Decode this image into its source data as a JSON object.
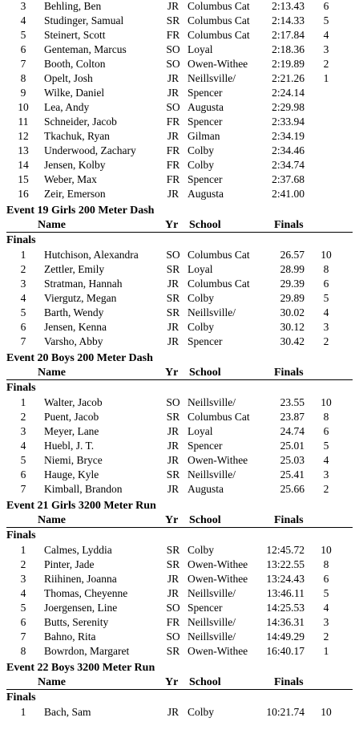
{
  "top_rows": [
    {
      "place": "3",
      "name": "Behling, Ben",
      "yr": "JR",
      "school": "Columbus Cat",
      "mark": "2:13.43",
      "pts": "6"
    },
    {
      "place": "4",
      "name": "Studinger, Samual",
      "yr": "SR",
      "school": "Columbus Cat",
      "mark": "2:14.33",
      "pts": "5"
    },
    {
      "place": "5",
      "name": "Steinert, Scott",
      "yr": "FR",
      "school": "Columbus Cat",
      "mark": "2:17.84",
      "pts": "4"
    },
    {
      "place": "6",
      "name": "Genteman, Marcus",
      "yr": "SO",
      "school": "Loyal",
      "mark": "2:18.36",
      "pts": "3"
    },
    {
      "place": "7",
      "name": "Booth, Colton",
      "yr": "SO",
      "school": "Owen-Withee",
      "mark": "2:19.89",
      "pts": "2"
    },
    {
      "place": "8",
      "name": "Opelt, Josh",
      "yr": "JR",
      "school": "Neillsville/",
      "mark": "2:21.26",
      "pts": "1"
    },
    {
      "place": "9",
      "name": "Wilke, Daniel",
      "yr": "JR",
      "school": "Spencer",
      "mark": "2:24.14",
      "pts": ""
    },
    {
      "place": "10",
      "name": "Lea, Andy",
      "yr": "SO",
      "school": "Augusta",
      "mark": "2:29.98",
      "pts": ""
    },
    {
      "place": "11",
      "name": "Schneider, Jacob",
      "yr": "FR",
      "school": "Spencer",
      "mark": "2:33.94",
      "pts": ""
    },
    {
      "place": "12",
      "name": "Tkachuk, Ryan",
      "yr": "JR",
      "school": "Gilman",
      "mark": "2:34.19",
      "pts": ""
    },
    {
      "place": "13",
      "name": "Underwood, Zachary",
      "yr": "FR",
      "school": "Colby",
      "mark": "2:34.46",
      "pts": ""
    },
    {
      "place": "14",
      "name": "Jensen, Kolby",
      "yr": "FR",
      "school": "Colby",
      "mark": "2:34.74",
      "pts": ""
    },
    {
      "place": "15",
      "name": "Weber, Max",
      "yr": "FR",
      "school": "Spencer",
      "mark": "2:37.68",
      "pts": ""
    },
    {
      "place": "16",
      "name": "Zeir, Emerson",
      "yr": "JR",
      "school": "Augusta",
      "mark": "2:41.00",
      "pts": ""
    }
  ],
  "events": [
    {
      "title": "Event 19  Girls 200 Meter Dash",
      "headers": {
        "name": "Name",
        "yr": "Yr",
        "school": "School",
        "finals": "Finals"
      },
      "round": "Finals",
      "rows": [
        {
          "place": "1",
          "name": "Hutchison, Alexandra",
          "yr": "SO",
          "school": "Columbus Cat",
          "mark": "26.57",
          "pts": "10"
        },
        {
          "place": "2",
          "name": "Zettler, Emily",
          "yr": "SR",
          "school": "Loyal",
          "mark": "28.99",
          "pts": "8"
        },
        {
          "place": "3",
          "name": "Stratman, Hannah",
          "yr": "JR",
          "school": "Columbus Cat",
          "mark": "29.39",
          "pts": "6"
        },
        {
          "place": "4",
          "name": "Viergutz, Megan",
          "yr": "SR",
          "school": "Colby",
          "mark": "29.89",
          "pts": "5"
        },
        {
          "place": "5",
          "name": "Barth, Wendy",
          "yr": "SR",
          "school": "Neillsville/",
          "mark": "30.02",
          "pts": "4"
        },
        {
          "place": "6",
          "name": "Jensen, Kenna",
          "yr": "JR",
          "school": "Colby",
          "mark": "30.12",
          "pts": "3"
        },
        {
          "place": "7",
          "name": "Varsho, Abby",
          "yr": "JR",
          "school": "Spencer",
          "mark": "30.42",
          "pts": "2"
        }
      ]
    },
    {
      "title": "Event 20  Boys 200 Meter Dash",
      "headers": {
        "name": "Name",
        "yr": "Yr",
        "school": "School",
        "finals": "Finals"
      },
      "round": "Finals",
      "rows": [
        {
          "place": "1",
          "name": "Walter, Jacob",
          "yr": "SO",
          "school": "Neillsville/",
          "mark": "23.55",
          "pts": "10"
        },
        {
          "place": "2",
          "name": "Puent, Jacob",
          "yr": "SR",
          "school": "Columbus Cat",
          "mark": "23.87",
          "pts": "8"
        },
        {
          "place": "3",
          "name": "Meyer, Lane",
          "yr": "JR",
          "school": "Loyal",
          "mark": "24.74",
          "pts": "6"
        },
        {
          "place": "4",
          "name": "Huebl, J. T.",
          "yr": "JR",
          "school": "Spencer",
          "mark": "25.01",
          "pts": "5"
        },
        {
          "place": "5",
          "name": "Niemi, Bryce",
          "yr": "JR",
          "school": "Owen-Withee",
          "mark": "25.03",
          "pts": "4"
        },
        {
          "place": "6",
          "name": "Hauge, Kyle",
          "yr": "SR",
          "school": "Neillsville/",
          "mark": "25.41",
          "pts": "3"
        },
        {
          "place": "7",
          "name": "Kimball, Brandon",
          "yr": "JR",
          "school": "Augusta",
          "mark": "25.66",
          "pts": "2"
        }
      ]
    },
    {
      "title": "Event 21  Girls 3200 Meter Run",
      "headers": {
        "name": "Name",
        "yr": "Yr",
        "school": "School",
        "finals": "Finals"
      },
      "round": "Finals",
      "rows": [
        {
          "place": "1",
          "name": "Calmes, Lyddia",
          "yr": "SR",
          "school": "Colby",
          "mark": "12:45.72",
          "pts": "10"
        },
        {
          "place": "2",
          "name": "Pinter, Jade",
          "yr": "SR",
          "school": "Owen-Withee",
          "mark": "13:22.55",
          "pts": "8"
        },
        {
          "place": "3",
          "name": "Riihinen, Joanna",
          "yr": "JR",
          "school": "Owen-Withee",
          "mark": "13:24.43",
          "pts": "6"
        },
        {
          "place": "4",
          "name": "Thomas, Cheyenne",
          "yr": "JR",
          "school": "Neillsville/",
          "mark": "13:46.11",
          "pts": "5"
        },
        {
          "place": "5",
          "name": "Joergensen, Line",
          "yr": "SO",
          "school": "Spencer",
          "mark": "14:25.53",
          "pts": "4"
        },
        {
          "place": "6",
          "name": "Butts, Serenity",
          "yr": "FR",
          "school": "Neillsville/",
          "mark": "14:36.31",
          "pts": "3"
        },
        {
          "place": "7",
          "name": "Bahno, Rita",
          "yr": "SO",
          "school": "Neillsville/",
          "mark": "14:49.29",
          "pts": "2"
        },
        {
          "place": "8",
          "name": "Bowrdon, Margaret",
          "yr": "SR",
          "school": "Owen-Withee",
          "mark": "16:40.17",
          "pts": "1"
        }
      ]
    },
    {
      "title": "Event 22  Boys 3200 Meter Run",
      "headers": {
        "name": "Name",
        "yr": "Yr",
        "school": "School",
        "finals": "Finals"
      },
      "round": "Finals",
      "rows": [
        {
          "place": "1",
          "name": "Bach, Sam",
          "yr": "JR",
          "school": "Colby",
          "mark": "10:21.74",
          "pts": "10"
        }
      ]
    }
  ]
}
